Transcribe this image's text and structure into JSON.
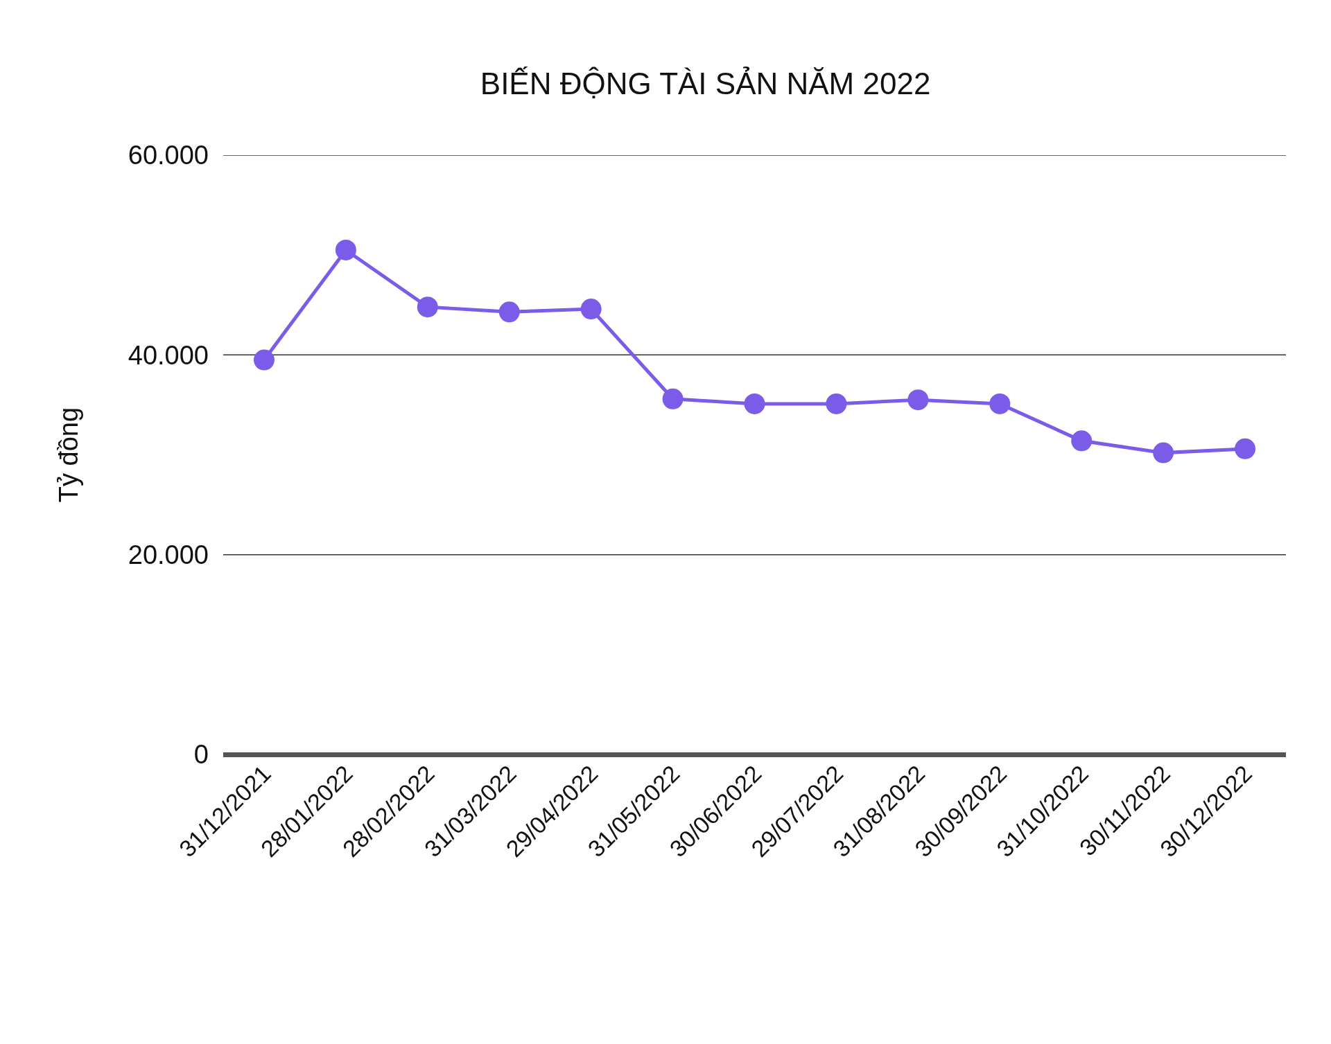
{
  "chart_data": {
    "type": "line",
    "title": "BIẾN ĐỘNG TÀI SẢN NĂM 2022",
    "ylabel": "Tỷ đồng",
    "categories": [
      "31/12/2021",
      "28/01/2022",
      "28/02/2022",
      "31/03/2022",
      "29/04/2022",
      "31/05/2022",
      "30/06/2022",
      "29/07/2022",
      "31/08/2022",
      "30/09/2022",
      "31/10/2022",
      "30/11/2022",
      "30/12/2022"
    ],
    "series": [
      {
        "color": "#7b5ce8",
        "values": [
          39500,
          50500,
          44800,
          44300,
          44600,
          35600,
          35100,
          35100,
          35500,
          35100,
          31400,
          30200,
          30600
        ]
      }
    ],
    "ylim": [
      0,
      60000
    ],
    "yticks": [
      {
        "value": 0,
        "label": "0"
      },
      {
        "value": 20000,
        "label": "20.000"
      },
      {
        "value": 40000,
        "label": "40.000"
      },
      {
        "value": 60000,
        "label": "60.000"
      }
    ],
    "grid": "y",
    "marker": "circle",
    "line_style": "solid"
  }
}
